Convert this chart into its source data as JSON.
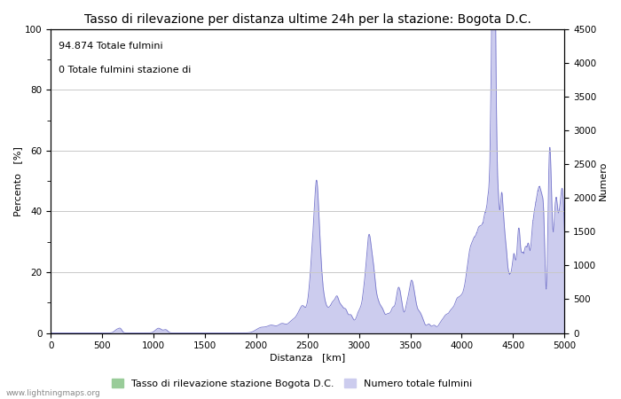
{
  "title": "Tasso di rilevazione per distanza ultime 24h per la stazione: Bogota D.C.",
  "xlabel": "Distanza   [km]",
  "ylabel_left": "Percento   [%]",
  "ylabel_right": "Numero",
  "annotation_line1": "94.874 Totale fulmini",
  "annotation_line2": "0 Totale fulmini stazione di",
  "xlim": [
    0,
    5000
  ],
  "ylim_left": [
    0,
    100
  ],
  "ylim_right": [
    0,
    4500
  ],
  "xticks": [
    0,
    500,
    1000,
    1500,
    2000,
    2500,
    3000,
    3500,
    4000,
    4500,
    5000
  ],
  "yticks_left": [
    0,
    20,
    40,
    60,
    80,
    100
  ],
  "yticks_right": [
    0,
    500,
    1000,
    1500,
    2000,
    2500,
    3000,
    3500,
    4000,
    4500
  ],
  "minor_yticks_left": [
    10,
    30,
    50,
    70,
    90
  ],
  "bg_color": "#ffffff",
  "grid_color": "#c8c8c8",
  "line_color": "#7777cc",
  "fill_color_blue": "#ccccee",
  "fill_color_green": "#99cc99",
  "legend_label1": "Tasso di rilevazione stazione Bogota D.C.",
  "legend_label2": "Numero totale fulmini",
  "watermark": "www.lightningmaps.org",
  "title_fontsize": 10,
  "axis_fontsize": 8,
  "tick_fontsize": 7.5,
  "annotation_fontsize": 8,
  "legend_fontsize": 8
}
